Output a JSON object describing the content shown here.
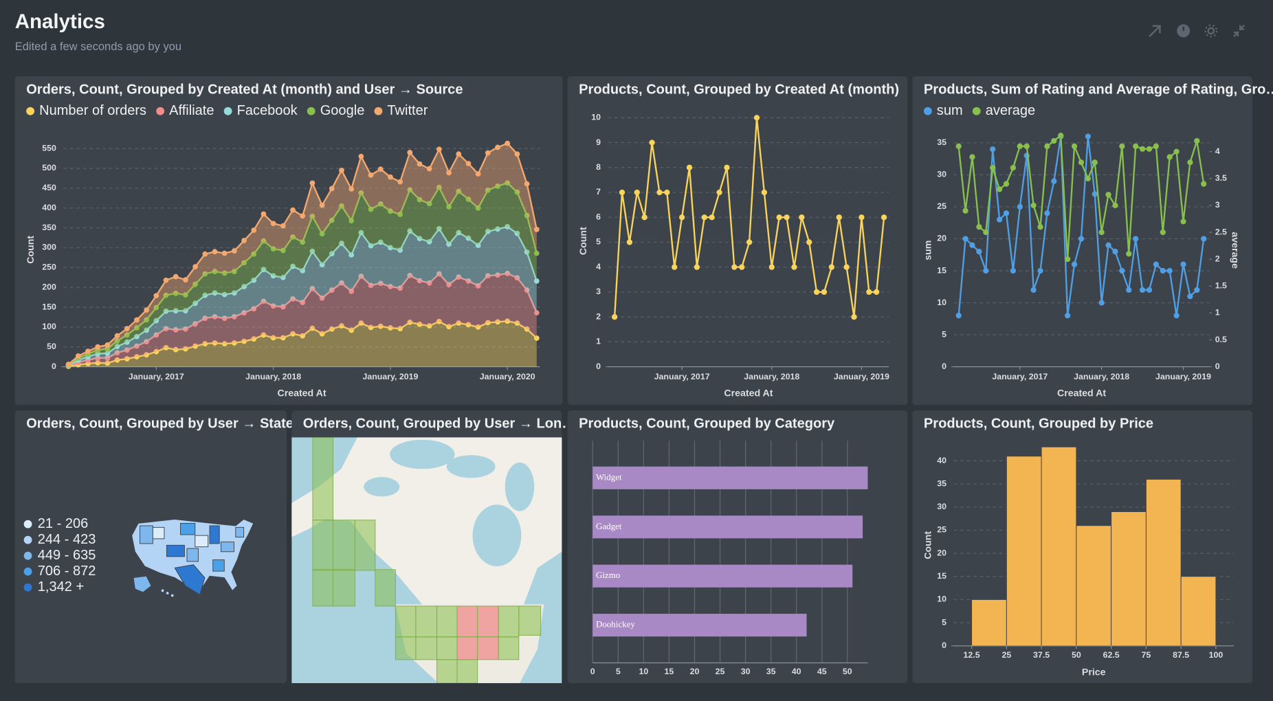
{
  "header": {
    "title": "Analytics",
    "subtitle": "Edited a few seconds ago by you"
  },
  "chart_data": [
    {
      "type": "area",
      "stacked": true,
      "title": "Orders, Count, Grouped by Created At (month) and User → Source",
      "xlabel": "Created At",
      "ylabel": "Count",
      "x": [
        "2016-04",
        "2016-05",
        "2016-06",
        "2016-07",
        "2016-08",
        "2016-09",
        "2016-10",
        "2016-11",
        "2016-12",
        "2017-01",
        "2017-02",
        "2017-03",
        "2017-04",
        "2017-05",
        "2017-06",
        "2017-07",
        "2017-08",
        "2017-09",
        "2017-10",
        "2017-11",
        "2017-12",
        "2018-01",
        "2018-02",
        "2018-03",
        "2018-04",
        "2018-05",
        "2018-06",
        "2018-07",
        "2018-08",
        "2018-09",
        "2018-10",
        "2018-11",
        "2018-12",
        "2019-01",
        "2019-02",
        "2019-03",
        "2019-04",
        "2019-05",
        "2019-06",
        "2019-07",
        "2019-08",
        "2019-09",
        "2019-10",
        "2019-11",
        "2019-12",
        "2020-01",
        "2020-02",
        "2020-03",
        "2020-04"
      ],
      "xlim": [
        "2016-04",
        "2020-04"
      ],
      "xticks": [
        {
          "value": "2017-01",
          "label": "January, 2017"
        },
        {
          "value": "2018-01",
          "label": "January, 2018"
        },
        {
          "value": "2019-01",
          "label": "January, 2019"
        },
        {
          "value": "2020-01",
          "label": "January, 2020"
        }
      ],
      "ylim": [
        0,
        590
      ],
      "yticks": [
        0,
        50,
        100,
        150,
        200,
        250,
        300,
        350,
        400,
        450,
        500,
        550
      ],
      "grid": true,
      "series": [
        {
          "name": "Number of orders",
          "color": "#F9D45C",
          "values": [
            1,
            5,
            8,
            10,
            9,
            17,
            20,
            25,
            30,
            38,
            48,
            43,
            45,
            52,
            58,
            60,
            58,
            60,
            64,
            70,
            80,
            73,
            73,
            83,
            78,
            97,
            83,
            95,
            103,
            92,
            110,
            99,
            102,
            98,
            96,
            112,
            107,
            103,
            114,
            101,
            110,
            106,
            100,
            111,
            113,
            115,
            110,
            95,
            72
          ]
        },
        {
          "name": "Affiliate",
          "color": "#EF8C8C",
          "values": [
            2,
            6,
            9,
            12,
            13,
            18,
            22,
            27,
            33,
            42,
            48,
            50,
            50,
            56,
            64,
            66,
            64,
            66,
            72,
            76,
            85,
            80,
            78,
            88,
            84,
            100,
            90,
            98,
            108,
            98,
            118,
            106,
            108,
            104,
            102,
            118,
            110,
            108,
            120,
            106,
            116,
            110,
            104,
            118,
            118,
            120,
            114,
            98,
            64
          ]
        },
        {
          "name": "Facebook",
          "color": "#98D9D9",
          "values": [
            1,
            6,
            8,
            11,
            12,
            16,
            20,
            24,
            29,
            36,
            44,
            48,
            46,
            52,
            58,
            60,
            60,
            60,
            66,
            72,
            80,
            76,
            74,
            82,
            80,
            94,
            84,
            92,
            100,
            92,
            110,
            100,
            104,
            98,
            96,
            112,
            106,
            104,
            114,
            102,
            112,
            108,
            102,
            112,
            116,
            118,
            112,
            96,
            80
          ]
        },
        {
          "name": "Google",
          "color": "#88BF4D",
          "values": [
            1,
            5,
            7,
            9,
            11,
            14,
            18,
            22,
            26,
            33,
            40,
            44,
            40,
            48,
            54,
            54,
            54,
            54,
            60,
            66,
            72,
            68,
            68,
            74,
            72,
            88,
            78,
            84,
            94,
            86,
            100,
            92,
            96,
            92,
            90,
            104,
            98,
            96,
            104,
            94,
            104,
            98,
            94,
            104,
            108,
            110,
            104,
            92,
            70
          ]
        },
        {
          "name": "Twitter",
          "color": "#F2A86F",
          "values": [
            1,
            5,
            7,
            8,
            10,
            13,
            16,
            20,
            25,
            30,
            38,
            42,
            38,
            44,
            50,
            50,
            50,
            52,
            56,
            60,
            68,
            64,
            62,
            68,
            66,
            84,
            72,
            80,
            90,
            80,
            92,
            86,
            88,
            86,
            82,
            94,
            90,
            88,
            96,
            86,
            94,
            90,
            86,
            94,
            98,
            100,
            96,
            80,
            60
          ]
        }
      ]
    },
    {
      "type": "line",
      "title": "Products, Count, Grouped by Created At (month)",
      "xlabel": "Created At",
      "ylabel": "Count",
      "x": [
        "2016-04",
        "2016-05",
        "2016-06",
        "2016-07",
        "2016-08",
        "2016-09",
        "2016-10",
        "2016-11",
        "2016-12",
        "2017-01",
        "2017-02",
        "2017-03",
        "2017-04",
        "2017-05",
        "2017-06",
        "2017-07",
        "2017-08",
        "2017-09",
        "2017-10",
        "2017-11",
        "2017-12",
        "2018-01",
        "2018-02",
        "2018-03",
        "2018-04",
        "2018-05",
        "2018-06",
        "2018-07",
        "2018-08",
        "2018-09",
        "2018-10",
        "2018-11",
        "2018-12",
        "2019-01",
        "2019-02",
        "2019-03",
        "2019-04"
      ],
      "xlim": [
        "2016-04",
        "2019-04"
      ],
      "xticks": [
        {
          "value": "2017-01",
          "label": "January, 2017"
        },
        {
          "value": "2018-01",
          "label": "January, 2018"
        },
        {
          "value": "2019-01",
          "label": "January, 2019"
        }
      ],
      "ylim": [
        0,
        10.1
      ],
      "yticks": [
        0,
        1,
        2,
        3,
        4,
        5,
        6,
        7,
        8,
        9,
        10
      ],
      "grid": true,
      "series": [
        {
          "color": "#F9D45C",
          "values": [
            2,
            7,
            5,
            7,
            6,
            9,
            7,
            7,
            4,
            6,
            8,
            4,
            6,
            6,
            7,
            8,
            4,
            4,
            5,
            10,
            7,
            4,
            6,
            6,
            4,
            6,
            5,
            3,
            3,
            4,
            6,
            4,
            2,
            6,
            3,
            3,
            6
          ]
        }
      ]
    },
    {
      "type": "line",
      "title": "Products, Sum of Rating and Average of Rating, Gro…",
      "xlabel": "Created At",
      "ylabel": "sum",
      "y2label": "average",
      "x": [
        "2016-04",
        "2016-05",
        "2016-06",
        "2016-07",
        "2016-08",
        "2016-09",
        "2016-10",
        "2016-11",
        "2016-12",
        "2017-01",
        "2017-02",
        "2017-03",
        "2017-04",
        "2017-05",
        "2017-06",
        "2017-07",
        "2017-08",
        "2017-09",
        "2017-10",
        "2017-11",
        "2017-12",
        "2018-01",
        "2018-02",
        "2018-03",
        "2018-04",
        "2018-05",
        "2018-06",
        "2018-07",
        "2018-08",
        "2018-09",
        "2018-10",
        "2018-11",
        "2018-12",
        "2019-01",
        "2019-02",
        "2019-03",
        "2019-04"
      ],
      "xlim": [
        "2016-04",
        "2019-04"
      ],
      "xticks": [
        {
          "value": "2017-01",
          "label": "January, 2017"
        },
        {
          "value": "2018-01",
          "label": "January, 2018"
        },
        {
          "value": "2019-01",
          "label": "January, 2019"
        }
      ],
      "ylim": [
        0,
        36.4
      ],
      "yticks": [
        0,
        5,
        10,
        15,
        20,
        25,
        30,
        35
      ],
      "y2lim": [
        0,
        4.33
      ],
      "y2ticks": [
        0,
        0.5,
        1,
        1.5,
        2,
        2.5,
        3,
        3.5,
        4
      ],
      "grid": true,
      "series": [
        {
          "name": "sum",
          "color": "#509EE3",
          "values": [
            8,
            20,
            19,
            18,
            15,
            34,
            23,
            24,
            15,
            25,
            33,
            12,
            15,
            24,
            29,
            36,
            8,
            16,
            20,
            36,
            27,
            10,
            19,
            18,
            15,
            12,
            20,
            12,
            12,
            16,
            15,
            15,
            8,
            16,
            11,
            12,
            20
          ]
        },
        {
          "name": "average",
          "color": "#88BF4D",
          "axis": "y2",
          "values": [
            4.1,
            2.9,
            3.9,
            2.6,
            2.5,
            3.7,
            3.3,
            3.4,
            3.7,
            4.1,
            4.1,
            3.0,
            2.6,
            4.1,
            4.2,
            4.3,
            2.0,
            4.1,
            3.8,
            3.5,
            3.8,
            2.5,
            3.2,
            3.0,
            4.1,
            2.1,
            4.1,
            4.05,
            4.05,
            4.1,
            2.5,
            3.9,
            4.0,
            2.7,
            3.8,
            4.2,
            3.4
          ]
        }
      ]
    },
    {
      "type": "map",
      "title": "Orders, Count, Grouped by User → State",
      "legend": [
        "21 - 206",
        "244 - 423",
        "449 - 635",
        "706 - 872",
        "1,342 +"
      ],
      "legend_colors": [
        "#DDECFA",
        "#B3D4F4",
        "#7EB7ED",
        "#4BA1E8",
        "#2D78D0"
      ]
    },
    {
      "type": "map",
      "title": "Orders, Count, Grouped by User → Lon…"
    },
    {
      "type": "bar",
      "orientation": "horizontal",
      "title": "Products, Count, Grouped by Category",
      "categories": [
        "Widget",
        "Gadget",
        "Gizmo",
        "Doohickey"
      ],
      "values": [
        54,
        53,
        51,
        42
      ],
      "color": "#A989C5",
      "xlim": [
        0,
        54
      ],
      "xticks": [
        0,
        5,
        10,
        15,
        20,
        25,
        30,
        35,
        40,
        45,
        50
      ],
      "grid": true
    },
    {
      "type": "histogram",
      "title": "Products, Count, Grouped by Price",
      "xlabel": "Price",
      "ylabel": "Count",
      "bins": [
        12.5,
        25,
        37.5,
        50,
        62.5,
        75,
        87.5,
        100
      ],
      "values": [
        10,
        41,
        43,
        26,
        29,
        36,
        15
      ],
      "color": "#F2B552",
      "xlim": [
        6.1,
        106.4
      ],
      "xticks": [
        12.5,
        25,
        37.5,
        50,
        62.5,
        75,
        87.5,
        100
      ],
      "ylim": [
        0,
        43.5
      ],
      "yticks": [
        0,
        5,
        10,
        15,
        20,
        25,
        30,
        35,
        40
      ],
      "grid": true
    }
  ]
}
